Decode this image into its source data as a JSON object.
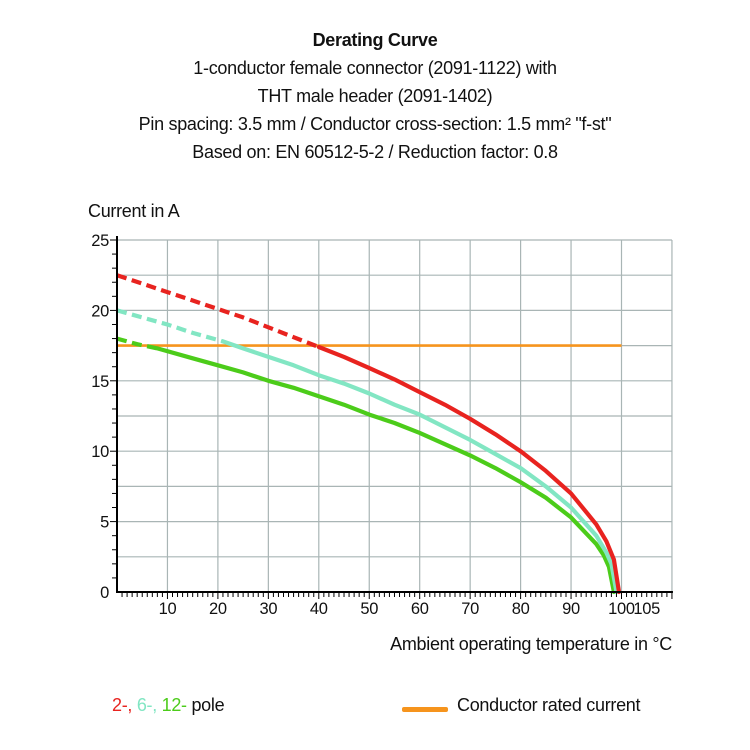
{
  "header": {
    "title": "Derating Curve",
    "subtitle_lines": [
      "1-conductor female connector (2091-1122) with",
      "THT male header (2091-1402)",
      "Pin spacing: 3.5 mm / Conductor cross-section: 1.5 mm² \"f-st\"",
      "Based on: EN 60512-5-2 / Reduction factor: 0.8"
    ]
  },
  "chart_data": {
    "type": "line",
    "title": "Derating Curve",
    "xlabel": "Ambient operating temperature in °C",
    "ylabel": "Current in A",
    "xlim": [
      0,
      110
    ],
    "ylim": [
      0,
      25
    ],
    "x_gridline_step": 10,
    "y_gridline_step": 2.5,
    "x_minor_tick_step": 1,
    "y_minor_tick_step": 1,
    "x_tick_labels": [
      10,
      20,
      30,
      40,
      50,
      60,
      70,
      80,
      90,
      100,
      105
    ],
    "y_tick_labels": [
      0,
      5,
      10,
      15,
      20,
      25
    ],
    "grid_color": "#a9b5b5",
    "axis_color": "#000000",
    "rated_current_line": {
      "label": "Conductor rated current",
      "y": 17.5,
      "x_start": 0,
      "x_end": 100,
      "color": "#f6941d"
    },
    "series": [
      {
        "name": "12-pole",
        "color": "#4ccc1a",
        "dash_until": 8,
        "x": [
          0,
          4,
          8,
          15,
          20,
          25,
          30,
          35,
          40,
          45,
          50,
          55,
          60,
          65,
          70,
          75,
          80,
          85,
          90,
          95,
          96.5,
          97.5,
          98.5
        ],
        "y": [
          18.0,
          17.6,
          17.3,
          16.6,
          16.1,
          15.6,
          15.0,
          14.5,
          13.9,
          13.3,
          12.6,
          12.0,
          11.3,
          10.5,
          9.7,
          8.8,
          7.8,
          6.7,
          5.3,
          3.4,
          2.6,
          1.8,
          0
        ]
      },
      {
        "name": "6-pole",
        "color": "#82e6c3",
        "dash_until": 21,
        "x": [
          0,
          5,
          10,
          15,
          21,
          25,
          30,
          35,
          40,
          45,
          50,
          55,
          60,
          65,
          70,
          75,
          80,
          85,
          90,
          95,
          97,
          98,
          99
        ],
        "y": [
          20.0,
          19.5,
          19.0,
          18.4,
          17.8,
          17.3,
          16.7,
          16.1,
          15.4,
          14.8,
          14.1,
          13.3,
          12.6,
          11.7,
          10.8,
          9.8,
          8.8,
          7.5,
          6.0,
          4.0,
          2.8,
          2.0,
          0
        ]
      },
      {
        "name": "2-pole",
        "color": "#e8231f",
        "dash_until": 40,
        "x": [
          0,
          5,
          10,
          15,
          20,
          25,
          30,
          35,
          40,
          45,
          50,
          55,
          60,
          65,
          70,
          75,
          80,
          85,
          90,
          95,
          97,
          98.5,
          99.5
        ],
        "y": [
          22.5,
          21.9,
          21.3,
          20.7,
          20.1,
          19.5,
          18.8,
          18.1,
          17.4,
          16.7,
          15.9,
          15.1,
          14.2,
          13.3,
          12.3,
          11.2,
          10.0,
          8.6,
          7.0,
          4.8,
          3.6,
          2.3,
          0
        ]
      }
    ]
  },
  "legend": {
    "pole_items": [
      {
        "text": "2-,",
        "color": "#e8231f"
      },
      {
        "text": "6-,",
        "color": "#82e6c3"
      },
      {
        "text": "12-",
        "color": "#4ccc1a"
      }
    ],
    "pole_suffix": "pole",
    "rated": {
      "label": "Conductor rated current",
      "color": "#f6941d"
    }
  }
}
